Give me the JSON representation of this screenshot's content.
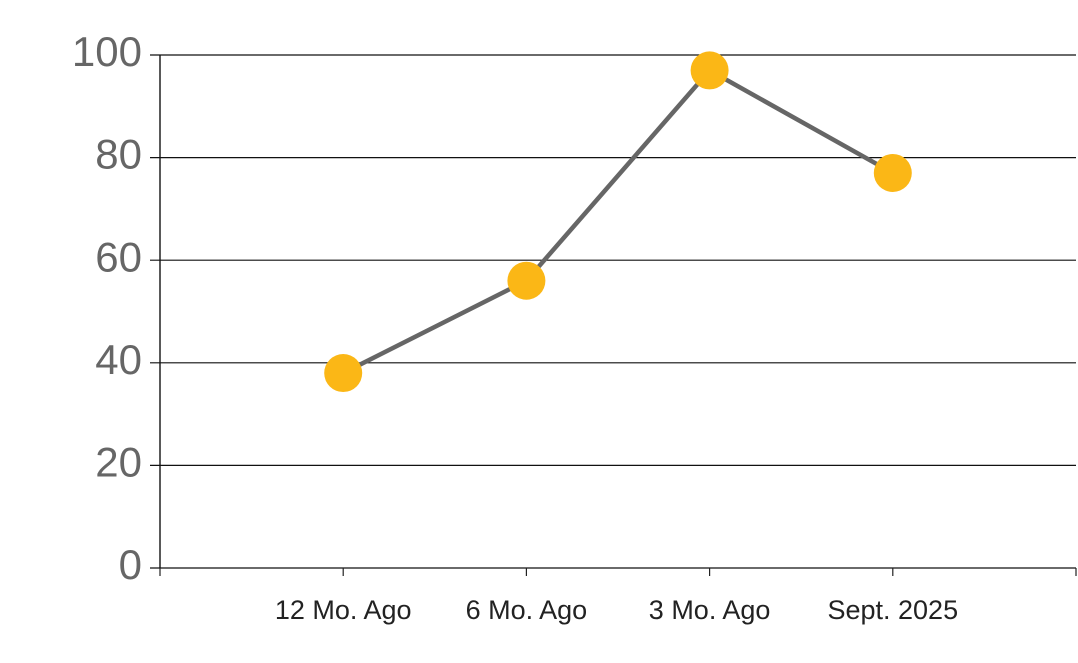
{
  "chart_data": {
    "type": "line",
    "categories": [
      "12 Mo. Ago",
      "6 Mo. Ago",
      "3 Mo. Ago",
      "Sept. 2025"
    ],
    "values": [
      38,
      56,
      97,
      77
    ],
    "line_color": "#666666",
    "marker_color": "#fbb716",
    "ylim": [
      0,
      100
    ],
    "yticks": [
      0,
      20,
      40,
      60,
      80,
      100
    ],
    "grid": true
  }
}
